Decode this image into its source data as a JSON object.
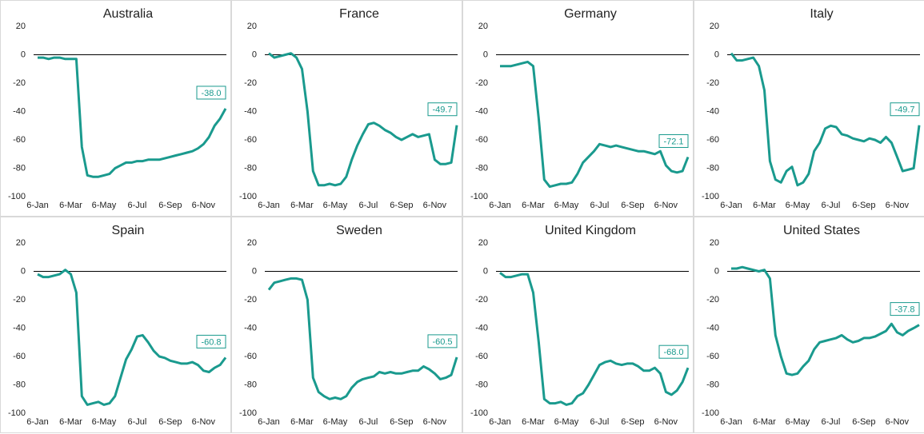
{
  "chart_data": [
    {
      "type": "line",
      "title": "Australia",
      "color": "#1a9a8e",
      "categories": [
        "6-Jan",
        null,
        null,
        null,
        null,
        null,
        "6-Mar",
        null,
        null,
        null,
        null,
        null,
        "6-May",
        null,
        null,
        null,
        null,
        null,
        "6-Jul",
        null,
        null,
        null,
        null,
        null,
        "6-Sep",
        null,
        null,
        null,
        null,
        null,
        "6-Nov",
        null,
        null,
        null,
        null
      ],
      "values": [
        -2,
        -2,
        -3,
        -2,
        -2,
        -3,
        -3,
        -3,
        -65,
        -85,
        -86,
        -86,
        -85,
        -84,
        -80,
        -78,
        -76,
        -76,
        -75,
        -75,
        -74,
        -74,
        -74,
        -73,
        -72,
        -71,
        -70,
        -69,
        -68,
        -66,
        -63,
        -58,
        -50,
        -45,
        -38
      ],
      "value_labels": [
        null,
        null,
        null,
        null,
        null,
        null,
        null,
        null,
        null,
        null,
        null,
        null,
        null,
        null,
        null,
        null,
        null,
        null,
        null,
        null,
        null,
        null,
        null,
        null,
        null,
        null,
        null,
        null,
        null,
        null,
        null,
        null,
        null,
        null,
        "-38.0"
      ],
      "ylim": [
        -100,
        20
      ],
      "yticks": [
        -100,
        -80,
        -60,
        -40,
        -20,
        0,
        20
      ]
    },
    {
      "type": "line",
      "title": "France",
      "color": "#1a9a8e",
      "categories": [
        "6-Jan",
        null,
        null,
        null,
        null,
        null,
        "6-Mar",
        null,
        null,
        null,
        null,
        null,
        "6-May",
        null,
        null,
        null,
        null,
        null,
        "6-Jul",
        null,
        null,
        null,
        null,
        null,
        "6-Sep",
        null,
        null,
        null,
        null,
        null,
        "6-Nov",
        null,
        null,
        null,
        null
      ],
      "values": [
        1,
        -2,
        -1,
        0,
        1,
        -2,
        -10,
        -40,
        -82,
        -92,
        -92,
        -91,
        -92,
        -91,
        -86,
        -74,
        -64,
        -56,
        -49,
        -48,
        -50,
        -53,
        -55,
        -58,
        -60,
        -58,
        -56,
        -58,
        -57,
        -56,
        -74,
        -77,
        -77,
        -76,
        -49.7
      ],
      "value_labels": [
        null,
        null,
        null,
        null,
        null,
        null,
        null,
        null,
        null,
        null,
        null,
        null,
        null,
        null,
        null,
        null,
        null,
        null,
        null,
        null,
        null,
        null,
        null,
        null,
        null,
        null,
        null,
        null,
        null,
        null,
        null,
        null,
        null,
        null,
        "-49.7"
      ],
      "ylim": [
        -100,
        20
      ],
      "yticks": [
        -100,
        -80,
        -60,
        -40,
        -20,
        0,
        20
      ]
    },
    {
      "type": "line",
      "title": "Germany",
      "color": "#1a9a8e",
      "categories": [
        "6-Jan",
        null,
        null,
        null,
        null,
        null,
        "6-Mar",
        null,
        null,
        null,
        null,
        null,
        "6-May",
        null,
        null,
        null,
        null,
        null,
        "6-Jul",
        null,
        null,
        null,
        null,
        null,
        "6-Sep",
        null,
        null,
        null,
        null,
        null,
        "6-Nov",
        null,
        null,
        null,
        null
      ],
      "values": [
        -8,
        -8,
        -8,
        -7,
        -6,
        -5,
        -8,
        -45,
        -88,
        -93,
        -92,
        -91,
        -91,
        -90,
        -84,
        -76,
        -72,
        -68,
        -63,
        -64,
        -65,
        -64,
        -65,
        -66,
        -67,
        -68,
        -68,
        -69,
        -70,
        -68,
        -78,
        -82,
        -83,
        -82,
        -72.1
      ],
      "value_labels": [
        null,
        null,
        null,
        null,
        null,
        null,
        null,
        null,
        null,
        null,
        null,
        null,
        null,
        null,
        null,
        null,
        null,
        null,
        null,
        null,
        null,
        null,
        null,
        null,
        null,
        null,
        null,
        null,
        null,
        null,
        null,
        null,
        null,
        null,
        "-72.1"
      ],
      "ylim": [
        -100,
        20
      ],
      "yticks": [
        -100,
        -80,
        -60,
        -40,
        -20,
        0,
        20
      ]
    },
    {
      "type": "line",
      "title": "Italy",
      "color": "#1a9a8e",
      "categories": [
        "6-Jan",
        null,
        null,
        null,
        null,
        null,
        "6-Mar",
        null,
        null,
        null,
        null,
        null,
        "6-May",
        null,
        null,
        null,
        null,
        null,
        "6-Jul",
        null,
        null,
        null,
        null,
        null,
        "6-Sep",
        null,
        null,
        null,
        null,
        null,
        "6-Nov",
        null,
        null,
        null,
        null
      ],
      "values": [
        1,
        -4,
        -4,
        -3,
        -2,
        -8,
        -25,
        -75,
        -88,
        -90,
        -82,
        -79,
        -92,
        -90,
        -84,
        -68,
        -62,
        -52,
        -50,
        -51,
        -56,
        -57,
        -59,
        -60,
        -61,
        -59,
        -60,
        -62,
        -58,
        -62,
        -72,
        -82,
        -81,
        -80,
        -49.7
      ],
      "value_labels": [
        null,
        null,
        null,
        null,
        null,
        null,
        null,
        null,
        null,
        null,
        null,
        null,
        null,
        null,
        null,
        null,
        null,
        null,
        null,
        null,
        null,
        null,
        null,
        null,
        null,
        null,
        null,
        null,
        null,
        null,
        null,
        null,
        null,
        null,
        "-49.7"
      ],
      "ylim": [
        -100,
        20
      ],
      "yticks": [
        -100,
        -80,
        -60,
        -40,
        -20,
        0,
        20
      ]
    },
    {
      "type": "line",
      "title": "Spain",
      "color": "#1a9a8e",
      "categories": [
        "6-Jan",
        null,
        null,
        null,
        null,
        null,
        "6-Mar",
        null,
        null,
        null,
        null,
        null,
        "6-May",
        null,
        null,
        null,
        null,
        null,
        "6-Jul",
        null,
        null,
        null,
        null,
        null,
        "6-Sep",
        null,
        null,
        null,
        null,
        null,
        "6-Nov",
        null,
        null,
        null,
        null
      ],
      "values": [
        -2,
        -4,
        -4,
        -3,
        -2,
        1,
        -2,
        -15,
        -88,
        -94,
        -93,
        -92,
        -94,
        -93,
        -88,
        -75,
        -62,
        -55,
        -46,
        -45,
        -50,
        -56,
        -60,
        -61,
        -63,
        -64,
        -65,
        -65,
        -64,
        -66,
        -70,
        -71,
        -68,
        -66,
        -60.8
      ],
      "value_labels": [
        null,
        null,
        null,
        null,
        null,
        null,
        null,
        null,
        null,
        null,
        null,
        null,
        null,
        null,
        null,
        null,
        null,
        null,
        null,
        null,
        null,
        null,
        null,
        null,
        null,
        null,
        null,
        null,
        null,
        null,
        null,
        null,
        null,
        null,
        "-60.8"
      ],
      "ylim": [
        -100,
        20
      ],
      "yticks": [
        -100,
        -80,
        -60,
        -40,
        -20,
        0,
        20
      ]
    },
    {
      "type": "line",
      "title": "Sweden",
      "color": "#1a9a8e",
      "categories": [
        "6-Jan",
        null,
        null,
        null,
        null,
        null,
        "6-Mar",
        null,
        null,
        null,
        null,
        null,
        "6-May",
        null,
        null,
        null,
        null,
        null,
        "6-Jul",
        null,
        null,
        null,
        null,
        null,
        "6-Sep",
        null,
        null,
        null,
        null,
        null,
        "6-Nov",
        null,
        null,
        null,
        null
      ],
      "values": [
        -13,
        -8,
        -7,
        -6,
        -5,
        -5,
        -6,
        -20,
        -75,
        -85,
        -88,
        -90,
        -89,
        -90,
        -88,
        -82,
        -78,
        -76,
        -75,
        -74,
        -71,
        -72,
        -71,
        -72,
        -72,
        -71,
        -70,
        -70,
        -67,
        -69,
        -72,
        -76,
        -75,
        -73,
        -60.5
      ],
      "value_labels": [
        null,
        null,
        null,
        null,
        null,
        null,
        null,
        null,
        null,
        null,
        null,
        null,
        null,
        null,
        null,
        null,
        null,
        null,
        null,
        null,
        null,
        null,
        null,
        null,
        null,
        null,
        null,
        null,
        null,
        null,
        null,
        null,
        null,
        null,
        "-60.5"
      ],
      "ylim": [
        -100,
        20
      ],
      "yticks": [
        -100,
        -80,
        -60,
        -40,
        -20,
        0,
        20
      ]
    },
    {
      "type": "line",
      "title": "United Kingdom",
      "color": "#1a9a8e",
      "categories": [
        "6-Jan",
        null,
        null,
        null,
        null,
        null,
        "6-Mar",
        null,
        null,
        null,
        null,
        null,
        "6-May",
        null,
        null,
        null,
        null,
        null,
        "6-Jul",
        null,
        null,
        null,
        null,
        null,
        "6-Sep",
        null,
        null,
        null,
        null,
        null,
        "6-Nov",
        null,
        null,
        null,
        null
      ],
      "values": [
        -1,
        -4,
        -4,
        -3,
        -2,
        -2,
        -15,
        -50,
        -90,
        -93,
        -93,
        -92,
        -94,
        -93,
        -88,
        -86,
        -80,
        -73,
        -66,
        -64,
        -63,
        -65,
        -66,
        -65,
        -65,
        -67,
        -70,
        -70,
        -68,
        -72,
        -85,
        -87,
        -84,
        -78,
        -68
      ],
      "value_labels": [
        null,
        null,
        null,
        null,
        null,
        null,
        null,
        null,
        null,
        null,
        null,
        null,
        null,
        null,
        null,
        null,
        null,
        null,
        null,
        null,
        null,
        null,
        null,
        null,
        null,
        null,
        null,
        null,
        null,
        null,
        null,
        null,
        null,
        null,
        "-68.0"
      ],
      "ylim": [
        -100,
        20
      ],
      "yticks": [
        -100,
        -80,
        -60,
        -40,
        -20,
        0,
        20
      ]
    },
    {
      "type": "line",
      "title": "United States",
      "color": "#1a9a8e",
      "categories": [
        "6-Jan",
        null,
        null,
        null,
        null,
        null,
        "6-Mar",
        null,
        null,
        null,
        null,
        null,
        "6-May",
        null,
        null,
        null,
        null,
        null,
        "6-Jul",
        null,
        null,
        null,
        null,
        null,
        "6-Sep",
        null,
        null,
        null,
        null,
        null,
        "6-Nov",
        null,
        null,
        null,
        null
      ],
      "values": [
        2,
        2,
        3,
        2,
        1,
        0,
        1,
        -5,
        -45,
        -60,
        -72,
        -73,
        -72,
        -67,
        -63,
        -55,
        -50,
        -49,
        -48,
        -47,
        -45,
        -48,
        -50,
        -49,
        -47,
        -47,
        -46,
        -44,
        -42,
        -37,
        -43,
        -45,
        -42,
        -40,
        -37.8
      ],
      "value_labels": [
        null,
        null,
        null,
        null,
        null,
        null,
        null,
        null,
        null,
        null,
        null,
        null,
        null,
        null,
        null,
        null,
        null,
        null,
        null,
        null,
        null,
        null,
        null,
        null,
        null,
        null,
        null,
        null,
        null,
        null,
        null,
        null,
        null,
        null,
        "-37.8"
      ],
      "ylim": [
        -100,
        20
      ],
      "yticks": [
        -100,
        -80,
        -60,
        -40,
        -20,
        0,
        20
      ]
    }
  ]
}
